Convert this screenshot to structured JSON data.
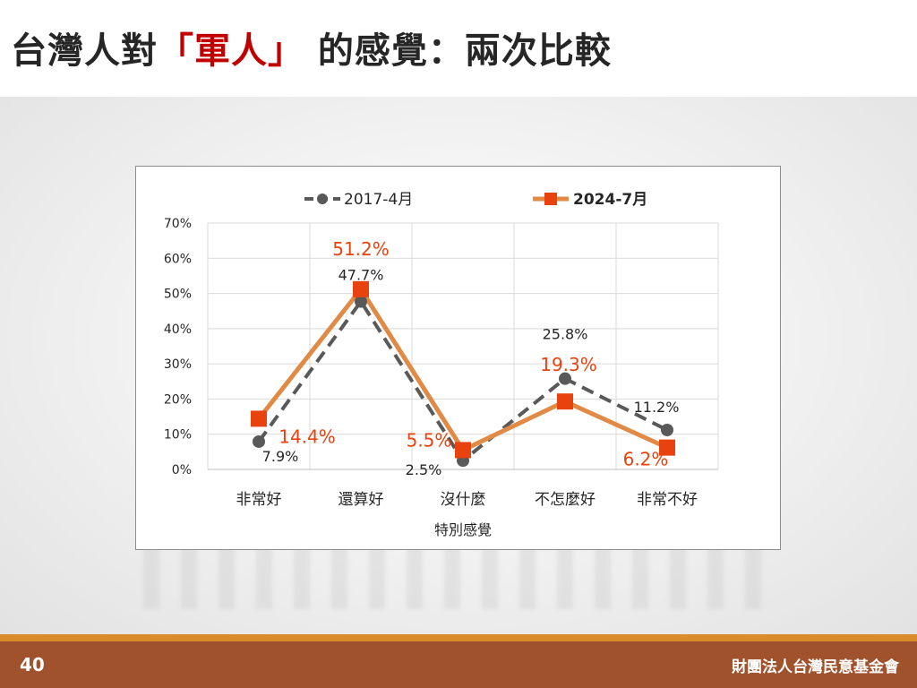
{
  "slide": {
    "title_prefix": "台灣人對",
    "title_highlight": "「軍人」",
    "title_suffix": " 的感覺：兩次比較",
    "page_number": "40",
    "organization": "財團法人台灣民意基金會"
  },
  "colors": {
    "series_2017": "#595959",
    "series_2024_line": "#e08a45",
    "series_2024_marker": "#e8420f",
    "label_2024": "#e8420f",
    "title_highlight": "#c00000",
    "footer": "#a0522d"
  },
  "chart_data": {
    "type": "line",
    "xlabel": "特別感覺",
    "ylabel": "",
    "categories": [
      "非常好",
      "還算好",
      "沒什麼",
      "不怎麼好",
      "非常不好"
    ],
    "ylim": [
      0,
      70
    ],
    "y_ticks": [
      "0%",
      "10%",
      "20%",
      "30%",
      "40%",
      "50%",
      "60%",
      "70%"
    ],
    "grid": true,
    "legend_position": "top",
    "series": [
      {
        "name": "2017-4月",
        "values": [
          7.9,
          47.7,
          2.5,
          25.8,
          11.2
        ],
        "labels": [
          "7.9%",
          "47.7%",
          "2.5%",
          "25.8%",
          "11.2%"
        ],
        "style": "dashed"
      },
      {
        "name": "2024-7月",
        "values": [
          14.4,
          51.2,
          5.5,
          19.3,
          6.2
        ],
        "labels": [
          "14.4%",
          "51.2%",
          "5.5%",
          "19.3%",
          "6.2%"
        ],
        "style": "solid"
      }
    ]
  }
}
